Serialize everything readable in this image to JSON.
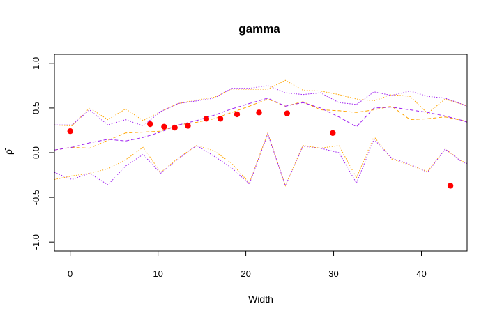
{
  "chart_data": {
    "type": "scatter",
    "title": "gamma",
    "xlabel": "Width",
    "ylabel": "ρ̂",
    "xlim": [
      -1.8,
      45.2
    ],
    "ylim": [
      -1.1,
      1.1
    ],
    "xticks": [
      0,
      10,
      20,
      30,
      40
    ],
    "yticks": [
      -1.0,
      -0.5,
      0.0,
      0.5,
      1.0
    ],
    "xtick_labels": [
      "0",
      "10",
      "20",
      "30",
      "40"
    ],
    "ytick_labels": [
      "-1.0",
      "-0.5",
      "0.0",
      "0.5",
      "1.0"
    ],
    "grid": false,
    "legend": "none",
    "points": {
      "color": "#ff0000",
      "x": [
        0,
        9.1,
        10.7,
        11.9,
        13.4,
        15.5,
        17.1,
        19.0,
        21.5,
        24.7,
        29.9,
        43.3
      ],
      "y": [
        0.24,
        0.32,
        0.29,
        0.28,
        0.3,
        0.38,
        0.38,
        0.43,
        0.45,
        0.44,
        0.22,
        -0.37
      ]
    },
    "lines": [
      {
        "color": "#ffa500",
        "style": "dashed",
        "x": [
          -1.8,
          0.2,
          2.2,
          4.3,
          6.3,
          8.3,
          10.3,
          12.3,
          14.4,
          16.4,
          18.4,
          20.4,
          22.5,
          24.5,
          26.5,
          28.5,
          30.6,
          32.6,
          34.6,
          36.6,
          38.7,
          40.7,
          42.7,
          44.7,
          45.2
        ],
        "y": [
          0.03,
          0.06,
          0.05,
          0.14,
          0.22,
          0.23,
          0.24,
          0.31,
          0.34,
          0.38,
          0.45,
          0.52,
          0.6,
          0.52,
          0.57,
          0.48,
          0.47,
          0.45,
          0.48,
          0.52,
          0.37,
          0.38,
          0.4,
          0.36,
          0.35
        ]
      },
      {
        "color": "#ffa500",
        "style": "dotted",
        "x": [
          -1.8,
          0.2,
          2.2,
          4.3,
          6.3,
          8.3,
          10.3,
          12.3,
          14.4,
          16.4,
          18.4,
          20.4,
          22.5,
          24.5,
          26.5,
          28.5,
          30.6,
          32.6,
          34.6,
          36.6,
          38.7,
          40.7,
          42.7,
          44.7,
          45.2
        ],
        "y": [
          0.31,
          0.3,
          0.5,
          0.37,
          0.49,
          0.36,
          0.46,
          0.55,
          0.59,
          0.62,
          0.71,
          0.71,
          0.71,
          0.81,
          0.7,
          0.69,
          0.65,
          0.6,
          0.58,
          0.65,
          0.63,
          0.44,
          0.6,
          0.54,
          0.52
        ]
      },
      {
        "color": "#ffa500",
        "style": "dotted",
        "x": [
          -1.8,
          0.2,
          2.2,
          4.3,
          6.3,
          8.3,
          10.3,
          12.3,
          14.4,
          16.4,
          18.4,
          20.4,
          22.5,
          24.5,
          26.5,
          28.5,
          30.6,
          32.6,
          34.6,
          36.6,
          38.7,
          40.7,
          42.7,
          44.7,
          45.2
        ],
        "y": [
          -0.3,
          -0.26,
          -0.23,
          -0.18,
          -0.08,
          0.06,
          -0.22,
          -0.06,
          0.08,
          0.02,
          -0.12,
          -0.34,
          0.22,
          -0.37,
          0.08,
          0.05,
          0.08,
          -0.28,
          0.18,
          -0.07,
          -0.14,
          -0.21,
          0.04,
          -0.1,
          -0.11
        ]
      },
      {
        "color": "#a020f0",
        "style": "dashed",
        "x": [
          -1.8,
          0.2,
          2.2,
          4.3,
          6.3,
          8.3,
          10.3,
          12.3,
          14.4,
          16.4,
          18.4,
          20.4,
          22.5,
          24.5,
          26.5,
          28.5,
          30.6,
          32.6,
          34.6,
          36.6,
          38.7,
          40.7,
          42.7,
          44.7,
          45.2
        ],
        "y": [
          0.03,
          0.06,
          0.11,
          0.15,
          0.13,
          0.17,
          0.23,
          0.31,
          0.36,
          0.42,
          0.49,
          0.55,
          0.61,
          0.52,
          0.56,
          0.5,
          0.4,
          0.29,
          0.5,
          0.51,
          0.48,
          0.45,
          0.41,
          0.36,
          0.34
        ]
      },
      {
        "color": "#a020f0",
        "style": "dotted",
        "x": [
          -1.8,
          0.2,
          2.2,
          4.3,
          6.3,
          8.3,
          10.3,
          12.3,
          14.4,
          16.4,
          18.4,
          20.4,
          22.5,
          24.5,
          26.5,
          28.5,
          30.6,
          32.6,
          34.6,
          36.6,
          38.7,
          40.7,
          42.7,
          44.7,
          45.2
        ],
        "y": [
          0.31,
          0.31,
          0.48,
          0.31,
          0.37,
          0.3,
          0.46,
          0.55,
          0.58,
          0.61,
          0.72,
          0.72,
          0.75,
          0.67,
          0.65,
          0.67,
          0.56,
          0.54,
          0.68,
          0.64,
          0.69,
          0.63,
          0.61,
          0.54,
          0.52
        ]
      },
      {
        "color": "#a020f0",
        "style": "dotted",
        "x": [
          -1.8,
          0.2,
          2.2,
          4.3,
          6.3,
          8.3,
          10.3,
          12.3,
          14.4,
          16.4,
          18.4,
          20.4,
          22.5,
          24.5,
          26.5,
          28.5,
          30.6,
          32.6,
          34.6,
          36.6,
          38.7,
          40.7,
          42.7,
          44.7,
          45.2
        ],
        "y": [
          -0.22,
          -0.3,
          -0.23,
          -0.36,
          -0.15,
          -0.02,
          -0.23,
          -0.07,
          0.08,
          -0.04,
          -0.17,
          -0.35,
          0.21,
          -0.37,
          0.07,
          0.05,
          0.0,
          -0.34,
          0.15,
          -0.06,
          -0.13,
          -0.22,
          0.04,
          -0.11,
          -0.12
        ]
      }
    ]
  }
}
